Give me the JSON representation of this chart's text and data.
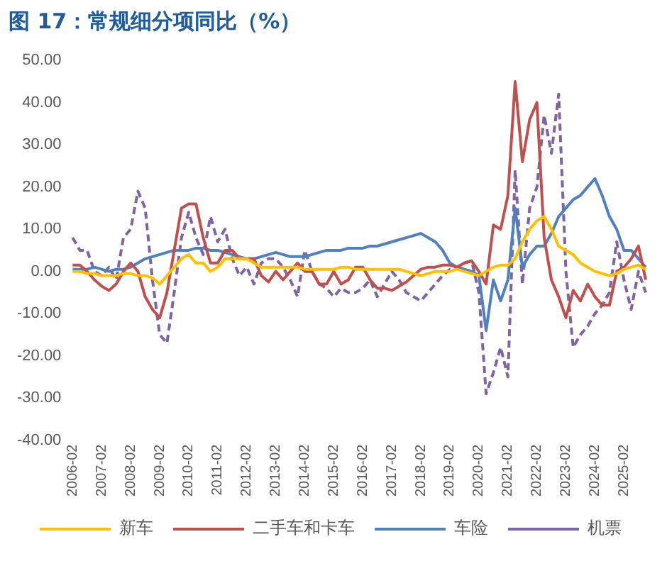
{
  "chart_data": {
    "type": "line",
    "title": "图 17：常规细分项同比（%）",
    "categories": [
      "2006-02",
      null,
      null,
      null,
      "2007-02",
      null,
      null,
      null,
      "2008-02",
      null,
      null,
      null,
      "2009-02",
      null,
      null,
      null,
      "2010-02",
      null,
      null,
      null,
      "2011-02",
      null,
      null,
      null,
      "2012-02",
      null,
      null,
      null,
      "2013-02",
      null,
      null,
      null,
      "2014-02",
      null,
      null,
      null,
      "2015-02",
      null,
      null,
      null,
      "2016-02",
      null,
      null,
      null,
      "2017-02",
      null,
      null,
      null,
      "2018-02",
      null,
      null,
      null,
      "2019-02",
      null,
      null,
      null,
      "2020-02",
      null,
      null,
      null,
      "2021-02",
      null,
      null,
      null,
      "2022-02",
      null,
      null,
      null,
      "2023-02",
      null,
      null,
      null,
      "2024-02",
      null,
      null,
      null,
      "2025-02",
      null,
      null,
      null
    ],
    "series": [
      {
        "name": "新车",
        "color": "#ffc000",
        "line_style": "solid",
        "values": [
          0,
          0,
          -0.5,
          -0.5,
          -1,
          -1,
          -1,
          -0.5,
          -0.5,
          -1,
          -1,
          -1.5,
          -3,
          -1,
          1,
          3,
          4,
          2,
          2,
          0,
          1,
          3,
          3,
          3,
          3,
          2,
          1,
          1,
          1,
          1,
          1,
          1,
          0.5,
          0.5,
          0.5,
          0.5,
          0.5,
          1,
          1,
          0.5,
          0.5,
          0.5,
          0.5,
          0.5,
          0.5,
          0.5,
          0,
          -0.5,
          -1,
          -0.5,
          0,
          0,
          0,
          0.5,
          0,
          -0.5,
          -1,
          0,
          1,
          1.5,
          1.5,
          3,
          7,
          10,
          12,
          13,
          10,
          6,
          5,
          4,
          2,
          1,
          0,
          -0.5,
          -1,
          -0.5,
          0.5,
          1,
          1.5,
          0.5
        ]
      },
      {
        "name": "二手车和卡车",
        "color": "#c0504d",
        "line_style": "solid",
        "values": [
          1.5,
          1.5,
          0,
          -2,
          -3.5,
          -4.5,
          -3,
          0,
          2,
          0,
          -6,
          -9,
          -11,
          -5,
          5,
          15,
          16,
          16,
          8,
          2,
          2,
          5,
          5,
          3,
          3,
          3,
          -1,
          -2.5,
          0,
          -2,
          0,
          2,
          0,
          0,
          -3,
          -3,
          0,
          -3,
          -2,
          1,
          1,
          -2,
          -4,
          -4,
          -4.5,
          -3.5,
          -2.5,
          -1,
          0.5,
          1,
          1,
          1.5,
          1.5,
          1,
          2,
          2.5,
          0,
          -3,
          11,
          10,
          18,
          45,
          26,
          36,
          40,
          8,
          -2,
          -6,
          -11,
          -4.5,
          -7,
          -3,
          -6,
          -8,
          -8,
          0,
          1,
          3,
          6,
          -2
        ]
      },
      {
        "name": "车险",
        "color": "#4f81bd",
        "line_style": "solid",
        "values": [
          0.5,
          0.5,
          0.5,
          1,
          0.5,
          0,
          0.5,
          0.5,
          1,
          2,
          3,
          3.5,
          4,
          4.5,
          5,
          5,
          5,
          5.5,
          5.5,
          5,
          5,
          4.5,
          4,
          3.5,
          3,
          3,
          3.5,
          4,
          4.5,
          4,
          3.5,
          3.5,
          3.5,
          4,
          4.5,
          5,
          5,
          5,
          5.5,
          5.5,
          5.5,
          6,
          6,
          6.5,
          7,
          7.5,
          8,
          8.5,
          9,
          8,
          7,
          5,
          2,
          1,
          0.5,
          0,
          -1,
          -14,
          -2,
          -7,
          -2,
          15,
          1,
          4,
          6,
          6,
          9,
          13,
          15,
          17,
          18,
          20,
          22,
          18,
          13,
          10,
          5,
          5,
          3,
          1
        ]
      },
      {
        "name": "机票",
        "color": "#8064a2",
        "line_style": "dashed",
        "values": [
          8,
          5,
          5,
          0,
          -1,
          1,
          -2,
          8,
          10,
          19,
          15,
          -2,
          -15,
          -17,
          -5,
          8,
          14,
          8,
          4,
          13,
          7,
          10,
          3,
          -1,
          1,
          -3,
          2,
          3,
          3,
          1,
          -2,
          -6,
          5,
          0,
          -3,
          -4,
          -6,
          -4,
          -5,
          -5,
          -4,
          -2,
          -6,
          -3,
          0,
          -2,
          -5,
          -6,
          -7,
          -5,
          -3,
          -1,
          0.5,
          1,
          2,
          2.5,
          -5,
          -29,
          -24,
          -18,
          -25,
          24,
          -3,
          15,
          20,
          37,
          28,
          42,
          0,
          -18,
          -15,
          -13,
          -10,
          -8,
          -5,
          7,
          -2,
          -9,
          0,
          -5
        ]
      }
    ],
    "ylim": [
      -40,
      50
    ],
    "yticks": [
      {
        "value": -40,
        "label": "-40.00"
      },
      {
        "value": -30,
        "label": "-30.00"
      },
      {
        "value": -20,
        "label": "-20.00"
      },
      {
        "value": -10,
        "label": "-10.00"
      },
      {
        "value": 0,
        "label": "0.00"
      },
      {
        "value": 10,
        "label": "10.00"
      },
      {
        "value": 20,
        "label": "20.00"
      },
      {
        "value": 30,
        "label": "30.00"
      },
      {
        "value": 40,
        "label": "40.00"
      },
      {
        "value": 50,
        "label": "50.00"
      }
    ],
    "grid": false,
    "legend": "bottom",
    "marker": "none"
  }
}
